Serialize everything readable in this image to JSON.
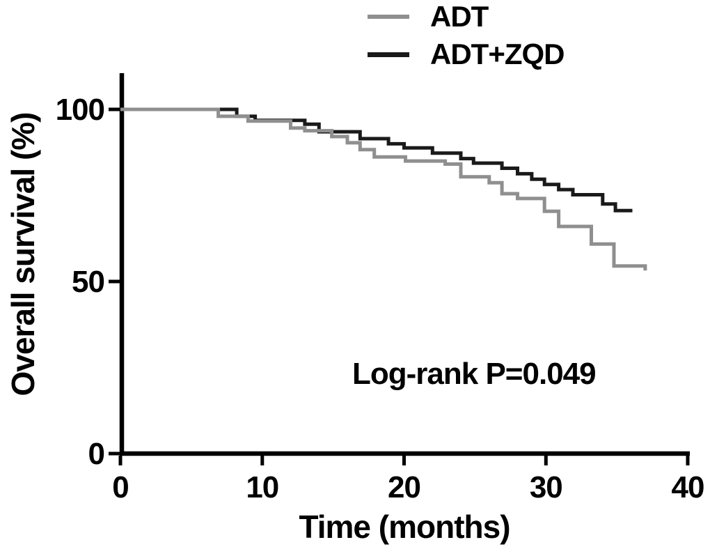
{
  "legend": {
    "items": [
      {
        "label": "ADT",
        "color": "#8f8f8f"
      },
      {
        "label": "ADT+ZQD",
        "color": "#1a1a1a"
      }
    ]
  },
  "axes": {
    "x": {
      "label": "Time (months)",
      "ticks": [
        0,
        10,
        20,
        30,
        40
      ],
      "range": [
        0,
        40
      ]
    },
    "y": {
      "label": "Overall survival (%)",
      "ticks": [
        0,
        50,
        100
      ],
      "range": [
        0,
        100
      ]
    }
  },
  "annotation": {
    "log_rank": "Log-rank P=0.049"
  },
  "chart_data": {
    "type": "line",
    "subtype": "kaplan-meier-step",
    "title": "",
    "xlabel": "Time (months)",
    "ylabel": "Overall survival (%)",
    "xlim": [
      0,
      40
    ],
    "ylim": [
      0,
      100
    ],
    "grid": false,
    "legend_position": "top-center",
    "annotations": [
      "Log-rank P=0.049"
    ],
    "axis_color": "#000000",
    "series": [
      {
        "name": "ADT",
        "color": "#8f8f8f",
        "start": [
          0,
          100
        ],
        "end_time": 37.0,
        "steps": [
          [
            6.9,
            98.0
          ],
          [
            9.0,
            96.6
          ],
          [
            12.0,
            94.6
          ],
          [
            13.0,
            93.8
          ],
          [
            14.9,
            92.1
          ],
          [
            16.0,
            90.3
          ],
          [
            16.9,
            88.3
          ],
          [
            17.9,
            86.2
          ],
          [
            20.1,
            85.0
          ],
          [
            22.9,
            84.1
          ],
          [
            24.0,
            80.4
          ],
          [
            26.0,
            78.7
          ],
          [
            26.9,
            75.5
          ],
          [
            28.0,
            74.1
          ],
          [
            29.9,
            70.4
          ],
          [
            30.9,
            66.0
          ],
          [
            33.2,
            60.9
          ],
          [
            34.8,
            54.5
          ],
          [
            37.0,
            53.2
          ]
        ]
      },
      {
        "name": "ADT+ZQD",
        "color": "#1a1a1a",
        "start": [
          0,
          100
        ],
        "end_time": 36.1,
        "steps": [
          [
            8.2,
            98.0
          ],
          [
            9.5,
            96.8
          ],
          [
            13.0,
            95.7
          ],
          [
            14.0,
            93.5
          ],
          [
            16.9,
            91.5
          ],
          [
            18.9,
            90.0
          ],
          [
            20.0,
            88.8
          ],
          [
            22.0,
            87.3
          ],
          [
            24.0,
            85.7
          ],
          [
            24.9,
            84.4
          ],
          [
            26.9,
            82.9
          ],
          [
            28.0,
            81.3
          ],
          [
            29.0,
            79.7
          ],
          [
            29.9,
            78.2
          ],
          [
            30.9,
            76.7
          ],
          [
            31.9,
            75.2
          ],
          [
            34.0,
            72.5
          ],
          [
            34.9,
            70.6
          ]
        ]
      }
    ]
  }
}
